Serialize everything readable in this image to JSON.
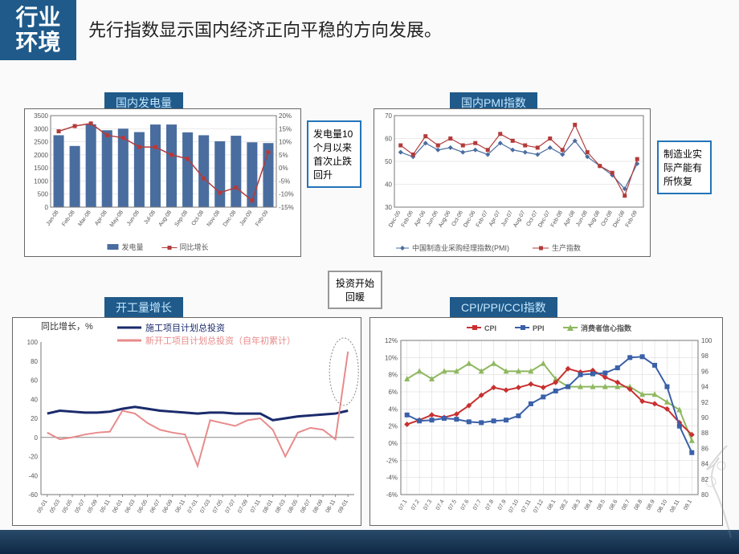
{
  "header": {
    "badge": "行业\n环境",
    "title": "先行指数显示国内经济正向平稳的方向发展。"
  },
  "chart1": {
    "title": "国内发电量",
    "note": "发电量10个月以来首次止跌回升",
    "type": "bar+line",
    "categories": [
      "Jan-08",
      "Feb-08",
      "Mar-08",
      "Apr-08",
      "May-08",
      "Jun-08",
      "Jul-08",
      "Aug-08",
      "Sep-08",
      "Oct-08",
      "Nov-08",
      "Dec-08",
      "Jan-09",
      "Feb-09"
    ],
    "bar_values": [
      2750,
      2340,
      3170,
      2940,
      3000,
      2870,
      3160,
      3160,
      2860,
      2750,
      2520,
      2730,
      2480,
      2450
    ],
    "line_values": [
      14,
      16,
      17,
      12.5,
      11.5,
      8,
      8,
      5,
      3.5,
      -4,
      -9.5,
      -7.5,
      -12.5,
      6
    ],
    "bar_color": "#4a6da0",
    "line_color": "#b33b3b",
    "marker_color": "#b33b3b",
    "y1_lim": [
      0,
      3500
    ],
    "y1_step": 500,
    "y2_lim": [
      -15,
      20
    ],
    "y2_step": 5,
    "legend1": "发电量",
    "legend2": "同比增长",
    "bg": "#ffffff",
    "grid_color": "#d5d5d5"
  },
  "chart2": {
    "title": "国内PMI指数",
    "note": "制造业实际产能有所恢复",
    "type": "line",
    "categories": [
      "Dec-05",
      "Feb-06",
      "Apr-06",
      "Jun-06",
      "Aug-06",
      "Oct-06",
      "Dec-06",
      "Feb-07",
      "Apr-07",
      "Jun-07",
      "Aug-07",
      "Oct-07",
      "Dec-07",
      "Feb-08",
      "Apr-08",
      "Jun-08",
      "Aug-08",
      "Oct-08",
      "Dec-08",
      "Feb-09"
    ],
    "s1": [
      54,
      52,
      58,
      55,
      56,
      54,
      55,
      53,
      58,
      55,
      54,
      53,
      56,
      53,
      59,
      52,
      48,
      44,
      38,
      49
    ],
    "s2": [
      57,
      53,
      61,
      57,
      60,
      57,
      58,
      55,
      62,
      59,
      57,
      56,
      60,
      55,
      66,
      54,
      48,
      45,
      35,
      51
    ],
    "s1_color": "#4a6da0",
    "s2_color": "#b33b3b",
    "ylim": [
      30,
      70
    ],
    "ystep": 10,
    "legend1": "中国制造业采购经理指数(PMI)",
    "legend2": "生产指数",
    "bg": "#ffffff"
  },
  "chart3": {
    "title": "开工量增长",
    "type": "line",
    "ylabel": "同比增长，%",
    "categories": [
      "05-01",
      "05-03",
      "05-05",
      "05-07",
      "05-09",
      "05-11",
      "06-01",
      "06-03",
      "06-05",
      "06-07",
      "06-09",
      "06-11",
      "07-01",
      "07-03",
      "07-05",
      "07-07",
      "07-09",
      "07-11",
      "08-01",
      "08-03",
      "08-05",
      "08-07",
      "08-09",
      "08-11",
      "09-01"
    ],
    "s1": [
      25,
      28,
      27,
      26,
      26,
      27,
      30,
      32,
      30,
      28,
      27,
      26,
      25,
      26,
      26,
      25,
      25,
      25,
      18,
      20,
      22,
      23,
      24,
      25,
      28
    ],
    "s2": [
      5,
      -2,
      0,
      3,
      5,
      6,
      28,
      25,
      15,
      8,
      5,
      3,
      -30,
      18,
      15,
      12,
      18,
      20,
      8,
      -20,
      5,
      10,
      8,
      -2,
      90
    ],
    "s1_color": "#1a2a6b",
    "s2_color": "#e88b8b",
    "ylim": [
      -60,
      100
    ],
    "ystep": 20,
    "legend1": "施工项目计划总投资",
    "legend2": "新开工项目计划总投资（自年初累计）",
    "spike_note": "投资开始回暖"
  },
  "chart4": {
    "title": "CPI/PPI/CCI指数",
    "type": "line-dual",
    "categories": [
      "07.1",
      "07.2",
      "07.3",
      "07.4",
      "07.5",
      "07.6",
      "07.7",
      "07.8",
      "07.9",
      "07.10",
      "07.11",
      "07.12",
      "08.1",
      "08.2",
      "08.3",
      "08.4",
      "08.5",
      "08.6",
      "08.7",
      "08.8",
      "08.9",
      "08.10",
      "08.11",
      "09.1"
    ],
    "cpi": [
      2.2,
      2.7,
      3.3,
      3.0,
      3.4,
      4.4,
      5.6,
      6.5,
      6.2,
      6.5,
      6.9,
      6.5,
      7.1,
      8.7,
      8.3,
      8.5,
      7.7,
      7.1,
      6.3,
      4.9,
      4.6,
      4.0,
      2.4,
      1.0
    ],
    "ppi": [
      3.3,
      2.6,
      2.7,
      2.9,
      2.8,
      2.5,
      2.4,
      2.6,
      2.7,
      3.2,
      4.6,
      5.4,
      6.1,
      6.6,
      8.0,
      8.1,
      8.2,
      8.8,
      10.0,
      10.1,
      9.1,
      6.6,
      2.0,
      -1.1
    ],
    "cci": [
      95,
      96,
      95,
      96,
      96,
      97,
      96,
      97,
      96,
      96,
      96,
      97,
      95,
      94,
      94,
      94,
      94,
      94,
      94,
      93,
      93,
      92,
      91,
      87
    ],
    "cpi_color": "#c83030",
    "ppi_color": "#3a60a8",
    "cci_color": "#8fb860",
    "y1_lim": [
      -6,
      12
    ],
    "y1_step": 2,
    "y2_lim": [
      80,
      100
    ],
    "y2_step": 2,
    "legend1": "CPI",
    "legend2": "PPI",
    "legend3": "消费者信心指数",
    "grid_color": "#d5d5d5"
  },
  "mid_note": "投资开始\n回暖"
}
